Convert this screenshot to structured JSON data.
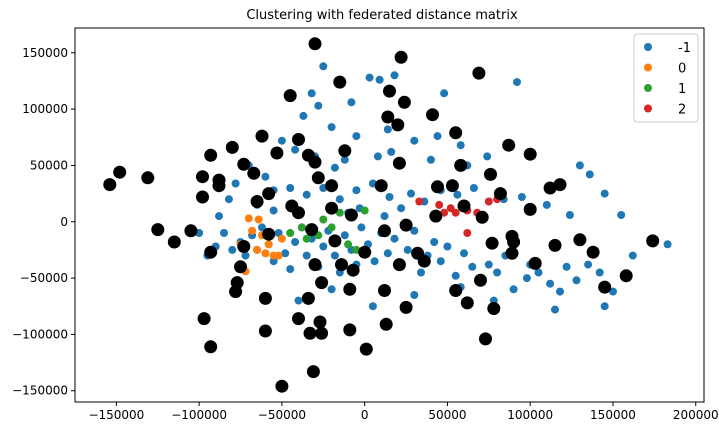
{
  "chart_data": {
    "type": "scatter",
    "title": "Clustering with federated distance matrix",
    "xlabel": "",
    "ylabel": "",
    "xlim": [
      -175000,
      205000
    ],
    "ylim": [
      -160000,
      172000
    ],
    "xticks": [
      -150000,
      -100000,
      -50000,
      0,
      50000,
      100000,
      150000,
      200000
    ],
    "xtick_labels": [
      "−150000",
      "−100000",
      "−50000",
      "0",
      "50000",
      "100000",
      "150000",
      "200000"
    ],
    "yticks": [
      -150000,
      -100000,
      -50000,
      0,
      50000,
      100000,
      150000
    ],
    "ytick_labels": [
      "−150000",
      "−100000",
      "−50000",
      "0",
      "50000",
      "100000",
      "150000"
    ],
    "grid": false,
    "legend_position": "top-right",
    "series": [
      {
        "name": "-1",
        "color": "#1f77b4",
        "points": [
          [
            -25000,
            138000
          ],
          [
            3000,
            128000
          ],
          [
            9000,
            126000
          ],
          [
            18000,
            130000
          ],
          [
            -32000,
            114000
          ],
          [
            -8000,
            106000
          ],
          [
            -37000,
            94000
          ],
          [
            -28000,
            103000
          ],
          [
            48000,
            114000
          ],
          [
            92000,
            124000
          ],
          [
            -20000,
            84000
          ],
          [
            -5000,
            76000
          ],
          [
            14000,
            82000
          ],
          [
            30000,
            72000
          ],
          [
            44000,
            76000
          ],
          [
            58000,
            68000
          ],
          [
            -50000,
            72000
          ],
          [
            -42000,
            64000
          ],
          [
            -30000,
            58000
          ],
          [
            -18000,
            48000
          ],
          [
            -12000,
            55000
          ],
          [
            8000,
            58000
          ],
          [
            16000,
            62000
          ],
          [
            40000,
            55000
          ],
          [
            62000,
            50000
          ],
          [
            74000,
            58000
          ],
          [
            130000,
            50000
          ],
          [
            136000,
            42000
          ],
          [
            -70000,
            50000
          ],
          [
            -78000,
            34000
          ],
          [
            -60000,
            40000
          ],
          [
            -55000,
            28000
          ],
          [
            -45000,
            30000
          ],
          [
            -35000,
            24000
          ],
          [
            -25000,
            30000
          ],
          [
            -15000,
            20000
          ],
          [
            -5000,
            28000
          ],
          [
            5000,
            34000
          ],
          [
            15000,
            22000
          ],
          [
            28000,
            25000
          ],
          [
            36000,
            18000
          ],
          [
            46000,
            28000
          ],
          [
            56000,
            24000
          ],
          [
            66000,
            30000
          ],
          [
            84000,
            20000
          ],
          [
            95000,
            22000
          ],
          [
            110000,
            15000
          ],
          [
            124000,
            6000
          ],
          [
            145000,
            25000
          ],
          [
            155000,
            6000
          ],
          [
            183000,
            -20000
          ],
          [
            -95000,
            -30000
          ],
          [
            -90000,
            -22000
          ],
          [
            -85000,
            -10000
          ],
          [
            -80000,
            -25000
          ],
          [
            -75000,
            -18000
          ],
          [
            -72000,
            -30000
          ],
          [
            -68000,
            -12000
          ],
          [
            -65000,
            -25000
          ],
          [
            -62000,
            -5000
          ],
          [
            -58000,
            -20000
          ],
          [
            -55000,
            -35000
          ],
          [
            -52000,
            -10000
          ],
          [
            -48000,
            -28000
          ],
          [
            -45000,
            -42000
          ],
          [
            -42000,
            -18000
          ],
          [
            -38000,
            -5000
          ],
          [
            -35000,
            -30000
          ],
          [
            -32000,
            -15000
          ],
          [
            -28000,
            -40000
          ],
          [
            -25000,
            -22000
          ],
          [
            -22000,
            -8000
          ],
          [
            -18000,
            -30000
          ],
          [
            -15000,
            -45000
          ],
          [
            -12000,
            -12000
          ],
          [
            -8000,
            -25000
          ],
          [
            -5000,
            -38000
          ],
          [
            -2000,
            -5000
          ],
          [
            2000,
            -20000
          ],
          [
            6000,
            -35000
          ],
          [
            10000,
            -10000
          ],
          [
            14000,
            -28000
          ],
          [
            18000,
            -15000
          ],
          [
            22000,
            -40000
          ],
          [
            26000,
            -25000
          ],
          [
            30000,
            -8000
          ],
          [
            34000,
            -45000
          ],
          [
            38000,
            -30000
          ],
          [
            42000,
            -18000
          ],
          [
            46000,
            -35000
          ],
          [
            50000,
            -22000
          ],
          [
            55000,
            -48000
          ],
          [
            60000,
            -28000
          ],
          [
            65000,
            -40000
          ],
          [
            70000,
            -52000
          ],
          [
            75000,
            -38000
          ],
          [
            80000,
            -45000
          ],
          [
            85000,
            -30000
          ],
          [
            90000,
            -60000
          ],
          [
            98000,
            -50000
          ],
          [
            105000,
            -45000
          ],
          [
            112000,
            -55000
          ],
          [
            118000,
            -62000
          ],
          [
            122000,
            -40000
          ],
          [
            128000,
            -52000
          ],
          [
            135000,
            -38000
          ],
          [
            142000,
            -45000
          ],
          [
            150000,
            -62000
          ],
          [
            115000,
            -78000
          ],
          [
            145000,
            -75000
          ],
          [
            162000,
            -30000
          ],
          [
            -40000,
            -70000
          ],
          [
            -20000,
            -60000
          ],
          [
            5000,
            -75000
          ],
          [
            30000,
            -65000
          ],
          [
            58000,
            -58000
          ],
          [
            78000,
            -70000
          ],
          [
            100000,
            -38000
          ],
          [
            -10000,
            8000
          ],
          [
            -3000,
            12000
          ],
          [
            12000,
            5000
          ],
          [
            22000,
            12000
          ],
          [
            -55000,
            10000
          ],
          [
            -65000,
            15000
          ],
          [
            -82000,
            20000
          ],
          [
            -88000,
            5000
          ],
          [
            -100000,
            -10000
          ]
        ]
      },
      {
        "name": "0",
        "color": "#ff7f0e",
        "points": [
          [
            -70000,
            3000
          ],
          [
            -68000,
            -8000
          ],
          [
            -62000,
            -12000
          ],
          [
            -58000,
            -20000
          ],
          [
            -55000,
            -30000
          ],
          [
            -60000,
            -28000
          ],
          [
            -65000,
            -25000
          ],
          [
            -72000,
            -44000
          ],
          [
            -75000,
            -20000
          ],
          [
            -52000,
            -30000
          ],
          [
            -50000,
            -15000
          ],
          [
            -64000,
            2000
          ]
        ]
      },
      {
        "name": "1",
        "color": "#2ca02c",
        "points": [
          [
            -45000,
            -10000
          ],
          [
            -32000,
            -8000
          ],
          [
            -28000,
            -12000
          ],
          [
            -20000,
            -5000
          ],
          [
            -15000,
            8000
          ],
          [
            -10000,
            -20000
          ],
          [
            -5000,
            -25000
          ],
          [
            0,
            10000
          ],
          [
            -25000,
            2000
          ],
          [
            -35000,
            -15000
          ],
          [
            -38000,
            -5000
          ]
        ]
      },
      {
        "name": "2",
        "color": "#d62728",
        "points": [
          [
            33000,
            18000
          ],
          [
            42000,
            5000
          ],
          [
            48000,
            8000
          ],
          [
            55000,
            8000
          ],
          [
            62000,
            10000
          ],
          [
            68000,
            8000
          ],
          [
            75000,
            18000
          ],
          [
            80000,
            20000
          ],
          [
            45000,
            15000
          ],
          [
            52000,
            12000
          ],
          [
            62000,
            -10000
          ]
        ]
      }
    ],
    "highlight_points": [
      [
        -30000,
        158000
      ],
      [
        22000,
        146000
      ],
      [
        69000,
        132000
      ],
      [
        -15000,
        124000
      ],
      [
        15000,
        116000
      ],
      [
        -45000,
        112000
      ],
      [
        24000,
        106000
      ],
      [
        41000,
        95000
      ],
      [
        14000,
        93000
      ],
      [
        20000,
        86000
      ],
      [
        55000,
        79000
      ],
      [
        -62000,
        76000
      ],
      [
        -40000,
        73000
      ],
      [
        -12000,
        63000
      ],
      [
        -34000,
        59000
      ],
      [
        -80000,
        66000
      ],
      [
        -93000,
        59000
      ],
      [
        -53000,
        61000
      ],
      [
        87000,
        68000
      ],
      [
        100000,
        60000
      ],
      [
        -30000,
        53000
      ],
      [
        21000,
        52000
      ],
      [
        58000,
        50000
      ],
      [
        -73000,
        51000
      ],
      [
        -67000,
        43000
      ],
      [
        -28000,
        39000
      ],
      [
        76000,
        42000
      ],
      [
        -98000,
        40000
      ],
      [
        -88000,
        37000
      ],
      [
        -88000,
        32000
      ],
      [
        -154000,
        33000
      ],
      [
        -148000,
        44000
      ],
      [
        -131000,
        39000
      ],
      [
        -20000,
        32000
      ],
      [
        10000,
        32000
      ],
      [
        44000,
        31000
      ],
      [
        53000,
        32000
      ],
      [
        118000,
        33000
      ],
      [
        112000,
        30000
      ],
      [
        -58000,
        25000
      ],
      [
        -98000,
        22000
      ],
      [
        -65000,
        18000
      ],
      [
        82000,
        25000
      ],
      [
        -44000,
        14000
      ],
      [
        -20000,
        12000
      ],
      [
        -40000,
        8000
      ],
      [
        -8000,
        6000
      ],
      [
        60000,
        14000
      ],
      [
        100000,
        11000
      ],
      [
        71000,
        4000
      ],
      [
        -125000,
        -7000
      ],
      [
        -115000,
        -18000
      ],
      [
        -105000,
        -8000
      ],
      [
        -58000,
        -11000
      ],
      [
        -32000,
        -7000
      ],
      [
        -18000,
        -17000
      ],
      [
        -73000,
        -22000
      ],
      [
        -93000,
        -27000
      ],
      [
        12000,
        -8000
      ],
      [
        25000,
        -3000
      ],
      [
        43000,
        5000
      ],
      [
        77000,
        -19000
      ],
      [
        89000,
        -13000
      ],
      [
        90000,
        -18000
      ],
      [
        115000,
        -21000
      ],
      [
        130000,
        -16000
      ],
      [
        138000,
        -27000
      ],
      [
        174000,
        -17000
      ],
      [
        -75000,
        -40000
      ],
      [
        -30000,
        -38000
      ],
      [
        -7000,
        -43000
      ],
      [
        -14000,
        -38000
      ],
      [
        0,
        -27000
      ],
      [
        21000,
        -38000
      ],
      [
        32000,
        -28000
      ],
      [
        36000,
        -35000
      ],
      [
        89000,
        -28000
      ],
      [
        103000,
        -37000
      ],
      [
        -77000,
        -54000
      ],
      [
        -26000,
        -54000
      ],
      [
        -78000,
        -62000
      ],
      [
        -60000,
        -68000
      ],
      [
        -9000,
        -60000
      ],
      [
        12000,
        -61000
      ],
      [
        55000,
        -61000
      ],
      [
        70000,
        -52000
      ],
      [
        -34000,
        -68000
      ],
      [
        25000,
        -76000
      ],
      [
        62000,
        -72000
      ],
      [
        78000,
        -77000
      ],
      [
        145000,
        -58000
      ],
      [
        158000,
        -48000
      ],
      [
        -97000,
        -86000
      ],
      [
        -40000,
        -86000
      ],
      [
        -27000,
        -89000
      ],
      [
        -9000,
        -96000
      ],
      [
        13000,
        -91000
      ],
      [
        -60000,
        -97000
      ],
      [
        -93000,
        -111000
      ],
      [
        -33000,
        -99000
      ],
      [
        -26000,
        -99000
      ],
      [
        73000,
        -104000
      ],
      [
        1000,
        -113000
      ],
      [
        -31000,
        -133000
      ],
      [
        -50000,
        -146000
      ]
    ],
    "highlight_color": "#000000",
    "legend": [
      "-1",
      "0",
      "1",
      "2"
    ]
  }
}
